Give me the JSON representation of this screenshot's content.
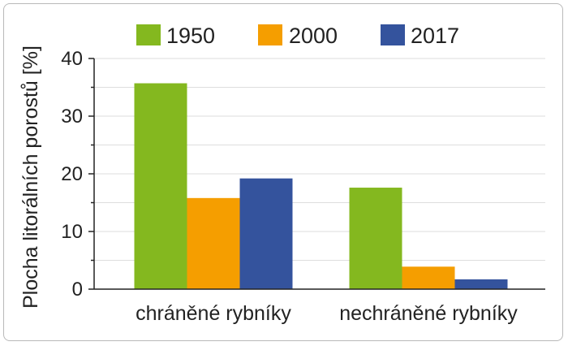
{
  "chart_data": {
    "type": "bar",
    "categories": [
      "chráněné rybníky",
      "nechráněné rybníky"
    ],
    "series": [
      {
        "name": "1950",
        "color": "#84b81f",
        "values": [
          35.7,
          17.6
        ]
      },
      {
        "name": "2000",
        "color": "#f59e00",
        "values": [
          15.8,
          3.9
        ]
      },
      {
        "name": "2017",
        "color": "#34539d",
        "values": [
          19.2,
          1.7
        ]
      }
    ],
    "ylabel": "Plocha litorálních porostů [%]",
    "ylim": [
      0,
      40
    ],
    "yticks": [
      0,
      10,
      20,
      30,
      40
    ],
    "grid": true,
    "legend_position": "top"
  }
}
